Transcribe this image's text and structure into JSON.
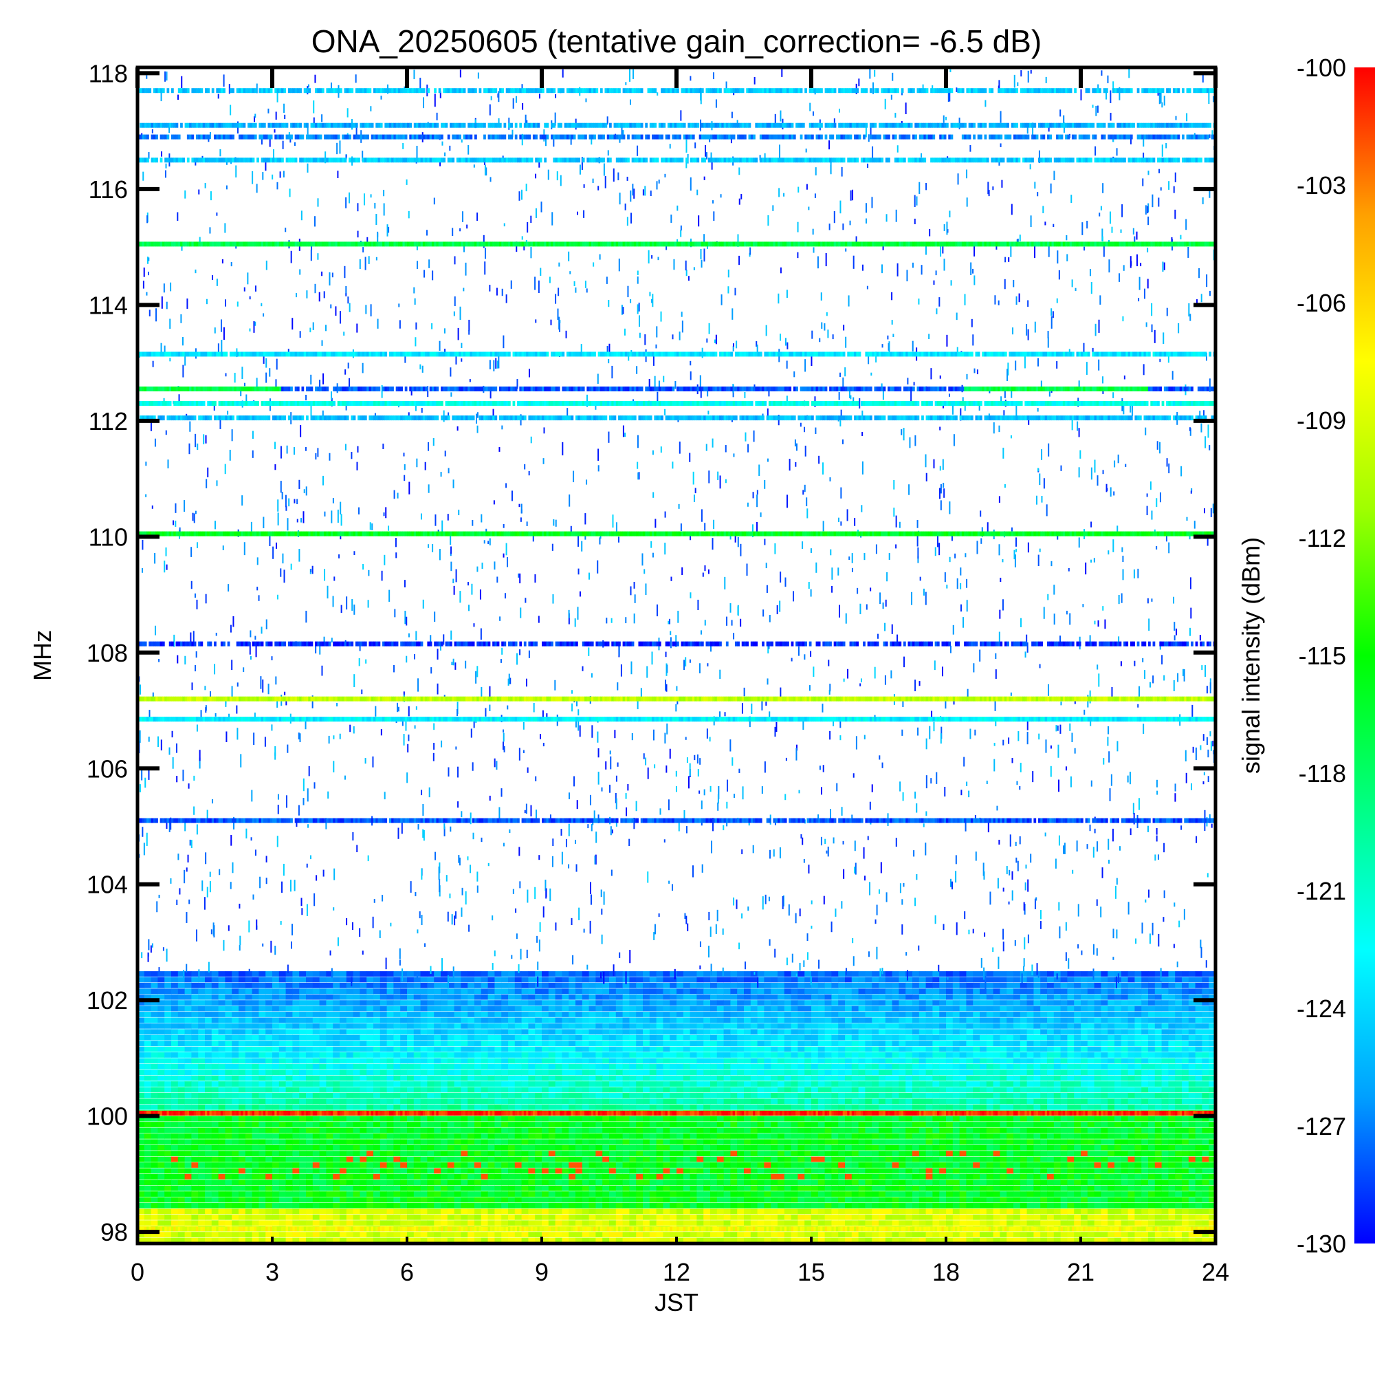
{
  "chart_data": {
    "type": "heatmap",
    "title": "ONA_20250605 (tentative gain_correction= -6.5 dB)",
    "xlabel": "JST",
    "ylabel": "MHz",
    "xlim": [
      0,
      24
    ],
    "ylim": [
      97.8,
      118.1
    ],
    "x_ticks": [
      0,
      3,
      6,
      9,
      12,
      15,
      18,
      21,
      24
    ],
    "y_ticks": [
      98,
      100,
      102,
      104,
      106,
      108,
      110,
      112,
      114,
      116,
      118
    ],
    "colorbar": {
      "label": "signal intensity (dBm)",
      "range": [
        -130,
        -100
      ],
      "ticks": [
        -100,
        -103,
        -106,
        -109,
        -112,
        -115,
        -118,
        -121,
        -124,
        -127,
        -130
      ],
      "colors": [
        "#0000ff",
        "#00a0ff",
        "#00ffff",
        "#00ff80",
        "#00ff00",
        "#a0ff00",
        "#ffff00",
        "#ffa000",
        "#ff0000"
      ]
    },
    "carriers": [
      {
        "freq": 117.7,
        "dbm": -124.5,
        "t0": 0,
        "t1": 24,
        "density": 0.85
      },
      {
        "freq": 117.1,
        "dbm": -125.5,
        "t0": 0,
        "t1": 24,
        "density": 0.9
      },
      {
        "freq": 116.9,
        "dbm": -127,
        "t0": 0,
        "t1": 24,
        "density": 0.8
      },
      {
        "freq": 116.5,
        "dbm": -124.5,
        "t0": 0,
        "t1": 24,
        "density": 0.9
      },
      {
        "freq": 115.05,
        "dbm": -117,
        "t0": 0,
        "t1": 24,
        "density": 1.0
      },
      {
        "freq": 113.15,
        "dbm": -123.5,
        "t0": 0,
        "t1": 24,
        "density": 0.95
      },
      {
        "freq": 112.55,
        "dbm": -117,
        "t0": 0,
        "t1": 3.2,
        "density": 1.0
      },
      {
        "freq": 112.55,
        "dbm": -128,
        "t0": 3.2,
        "t1": 18.4,
        "density": 0.9
      },
      {
        "freq": 112.55,
        "dbm": -117,
        "t0": 18.4,
        "t1": 22.5,
        "density": 1.0
      },
      {
        "freq": 112.55,
        "dbm": -128,
        "t0": 22.5,
        "t1": 24,
        "density": 0.9
      },
      {
        "freq": 112.3,
        "dbm": -122,
        "t0": 0,
        "t1": 24,
        "density": 0.95
      },
      {
        "freq": 112.05,
        "dbm": -125,
        "t0": 0,
        "t1": 24,
        "density": 0.9
      },
      {
        "freq": 110.05,
        "dbm": -116,
        "t0": 0,
        "t1": 24,
        "density": 1.0
      },
      {
        "freq": 108.15,
        "dbm": -129,
        "t0": 0,
        "t1": 24,
        "density": 0.8
      },
      {
        "freq": 107.2,
        "dbm": -110,
        "t0": 0,
        "t1": 24,
        "density": 1.0
      },
      {
        "freq": 106.85,
        "dbm": -123,
        "t0": 0,
        "t1": 24,
        "density": 1.0
      },
      {
        "freq": 105.1,
        "dbm": -128,
        "t0": 0,
        "t1": 24,
        "density": 0.95
      },
      {
        "freq": 100.05,
        "dbm": -101,
        "t0": 0,
        "t1": 24,
        "density": 1.0
      },
      {
        "freq": 98.05,
        "dbm": -108,
        "t0": 0,
        "t1": 24,
        "density": 1.0
      }
    ]
  }
}
